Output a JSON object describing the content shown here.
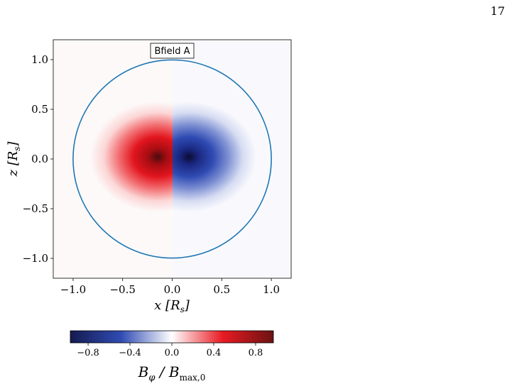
{
  "page_number": "17",
  "chart_data": {
    "type": "heatmap",
    "panel_label": "Bfield A",
    "xlabel": "x [R_s]",
    "ylabel": "z [R_s]",
    "xlim": [
      -1.2,
      1.2
    ],
    "ylim": [
      -1.2,
      1.2
    ],
    "xticks": [
      -1.0,
      -0.5,
      0.0,
      0.5,
      1.0
    ],
    "yticks": [
      -1.0,
      -0.5,
      0.0,
      0.5,
      1.0
    ],
    "xtick_labels": [
      "−1.0",
      "−0.5",
      "0.0",
      "0.5",
      "1.0"
    ],
    "ytick_labels": [
      "−1.0",
      "−0.5",
      "0.0",
      "0.5",
      "1.0"
    ],
    "field": {
      "description": "B_phi antisymmetric in x: positive (red) peak at x<0, negative (blue) peak at x>0, near z=0",
      "positive_peak": {
        "x": -0.16,
        "z": 0.0,
        "value": 0.97
      },
      "negative_peak": {
        "x": 0.16,
        "z": 0.0,
        "value": -0.97
      }
    },
    "boundary_circle": {
      "center": [
        0.0,
        0.0
      ],
      "radius": 1.0,
      "color": "#1f77b4"
    },
    "colorbar": {
      "label": "B_φ / B_max,0",
      "range": [
        -0.97,
        0.97
      ],
      "colormap": "seismic",
      "ticks": [
        -0.8,
        -0.4,
        0.0,
        0.4,
        0.8
      ],
      "tick_labels": [
        "−0.8",
        "−0.4",
        "0.0",
        "0.4",
        "0.8"
      ],
      "orientation": "horizontal"
    }
  }
}
